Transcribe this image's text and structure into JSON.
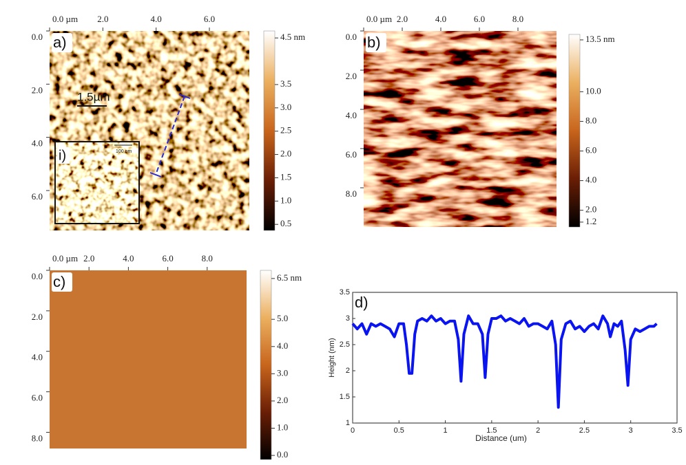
{
  "chart_data": [
    {
      "type": "image",
      "label": "a)",
      "xlim": [
        0,
        7.5
      ],
      "xticks": [
        {
          "value": 0,
          "label": "0.0 µm"
        },
        {
          "value": 2,
          "label": "2.0"
        },
        {
          "value": 4,
          "label": "4.0"
        },
        {
          "value": 6,
          "label": "6.0"
        }
      ],
      "ylim": [
        0,
        7.5
      ],
      "yticks": [
        {
          "value": 0,
          "label": "0.0"
        },
        {
          "value": 2,
          "label": "2.0"
        },
        {
          "value": 4,
          "label": "4.0"
        },
        {
          "value": 6,
          "label": "6.0"
        }
      ],
      "zlim": [
        0.37,
        4.65
      ],
      "zticks": [
        {
          "value": 4.5,
          "label": "4.5 nm"
        },
        {
          "value": 3.5,
          "label": "3.5"
        },
        {
          "value": 3,
          "label": "3.0"
        },
        {
          "value": 2.5,
          "label": "2.5"
        },
        {
          "value": 2,
          "label": "2.0"
        },
        {
          "value": 1.5,
          "label": "1.5"
        },
        {
          "value": 1,
          "label": "1.0"
        },
        {
          "value": 0.5,
          "label": "0.5"
        }
      ],
      "annotations": [
        "1.5µm",
        "i)",
        "100 nm"
      ]
    },
    {
      "type": "image",
      "label": "b)",
      "xlim": [
        0,
        10
      ],
      "xticks": [
        {
          "value": 0,
          "label": "0.0 µm"
        },
        {
          "value": 2,
          "label": "2.0"
        },
        {
          "value": 4,
          "label": "4.0"
        },
        {
          "value": 6,
          "label": "6.0"
        },
        {
          "value": 8,
          "label": "8.0"
        }
      ],
      "ylim": [
        0,
        10
      ],
      "yticks": [
        {
          "value": 0,
          "label": "0.0"
        },
        {
          "value": 2,
          "label": "2.0"
        },
        {
          "value": 4,
          "label": "4.0"
        },
        {
          "value": 6,
          "label": "6.0"
        },
        {
          "value": 8,
          "label": "8.0"
        }
      ],
      "zlim": [
        0.87,
        13.87
      ],
      "zticks": [
        {
          "value": 13.5,
          "label": "13.5 nm"
        },
        {
          "value": 10,
          "label": "10.0"
        },
        {
          "value": 8,
          "label": "8.0"
        },
        {
          "value": 6,
          "label": "6.0"
        },
        {
          "value": 4,
          "label": "4.0"
        },
        {
          "value": 2,
          "label": "2.0"
        },
        {
          "value": 1.2,
          "label": "1.2"
        }
      ]
    },
    {
      "type": "image",
      "label": "c)",
      "xlim": [
        0,
        10
      ],
      "xticks": [
        {
          "value": 0,
          "label": "0.0 µm"
        },
        {
          "value": 2,
          "label": "2.0"
        },
        {
          "value": 4,
          "label": "4.0"
        },
        {
          "value": 6,
          "label": "6.0"
        },
        {
          "value": 8,
          "label": "8.0"
        }
      ],
      "ylim": [
        0,
        8.8
      ],
      "yticks": [
        {
          "value": 0,
          "label": "0.0"
        },
        {
          "value": 2,
          "label": "2.0"
        },
        {
          "value": 4,
          "label": "4.0"
        },
        {
          "value": 6,
          "label": "6.0"
        },
        {
          "value": 8,
          "label": "8.0"
        }
      ],
      "zlim": [
        -0.15,
        6.8
      ],
      "zticks": [
        {
          "value": 6.5,
          "label": "6.5 nm"
        },
        {
          "value": 5,
          "label": "5.0"
        },
        {
          "value": 4,
          "label": "4.0"
        },
        {
          "value": 3,
          "label": "3.0"
        },
        {
          "value": 2,
          "label": "2.0"
        },
        {
          "value": 1,
          "label": "1.0"
        },
        {
          "value": 0,
          "label": "0.0"
        }
      ]
    },
    {
      "type": "line",
      "label": "d)",
      "xlabel": "Distance (um)",
      "ylabel": "Height (nm)",
      "color": "#0a14f0",
      "xlim": [
        0,
        3.5
      ],
      "xticks": [
        0,
        0.5,
        1,
        1.5,
        2,
        2.5,
        3,
        3.5
      ],
      "ylim": [
        1,
        3.5
      ],
      "yticks": [
        1,
        1.5,
        2,
        2.5,
        3,
        3.5
      ],
      "x": [
        0,
        0.05,
        0.1,
        0.15,
        0.2,
        0.25,
        0.3,
        0.35,
        0.4,
        0.45,
        0.5,
        0.55,
        0.58,
        0.61,
        0.64,
        0.67,
        0.7,
        0.75,
        0.8,
        0.85,
        0.9,
        0.95,
        1.0,
        1.05,
        1.1,
        1.14,
        1.17,
        1.2,
        1.25,
        1.3,
        1.35,
        1.4,
        1.43,
        1.46,
        1.5,
        1.55,
        1.6,
        1.65,
        1.7,
        1.75,
        1.8,
        1.85,
        1.9,
        1.95,
        2.0,
        2.05,
        2.1,
        2.15,
        2.19,
        2.22,
        2.25,
        2.3,
        2.35,
        2.4,
        2.45,
        2.5,
        2.55,
        2.6,
        2.65,
        2.7,
        2.75,
        2.78,
        2.82,
        2.86,
        2.9,
        2.94,
        2.97,
        3.0,
        3.05,
        3.1,
        3.15,
        3.2,
        3.25,
        3.28
      ],
      "values": [
        2.9,
        2.8,
        2.9,
        2.7,
        2.9,
        2.85,
        2.9,
        2.85,
        2.8,
        2.65,
        2.9,
        2.9,
        2.5,
        1.95,
        1.95,
        2.7,
        2.95,
        3.0,
        2.95,
        3.05,
        2.95,
        3.0,
        2.9,
        2.95,
        2.95,
        2.6,
        1.8,
        2.7,
        3.05,
        2.9,
        2.9,
        2.7,
        1.87,
        2.7,
        3.0,
        3.0,
        3.05,
        2.95,
        3.0,
        2.95,
        2.9,
        3.0,
        2.85,
        2.9,
        2.9,
        2.85,
        2.8,
        2.95,
        2.5,
        1.3,
        2.6,
        2.9,
        2.95,
        2.8,
        2.85,
        2.75,
        2.85,
        2.9,
        2.8,
        3.05,
        2.9,
        2.65,
        2.9,
        2.85,
        2.95,
        2.4,
        1.72,
        2.6,
        2.8,
        2.75,
        2.8,
        2.85,
        2.85,
        2.9
      ]
    }
  ]
}
